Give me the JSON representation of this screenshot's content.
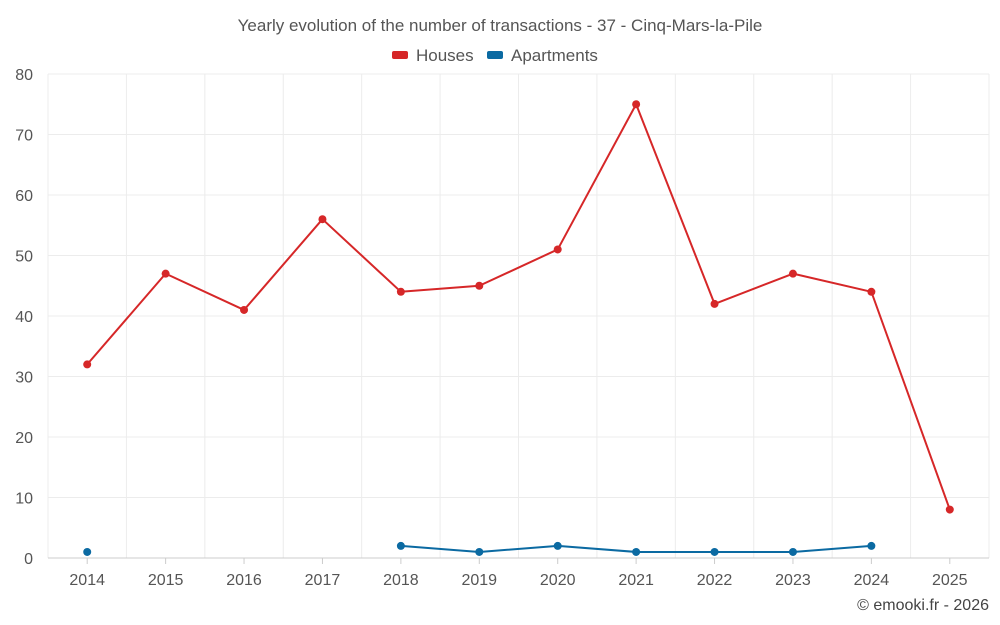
{
  "chart_data": {
    "type": "line",
    "title": "Yearly evolution of the number of transactions - 37 - Cinq-Mars-la-Pile",
    "categories": [
      "2014",
      "2015",
      "2016",
      "2017",
      "2018",
      "2019",
      "2020",
      "2021",
      "2022",
      "2023",
      "2024",
      "2025"
    ],
    "series": [
      {
        "name": "Houses",
        "color": "#d62728",
        "values": [
          32,
          47,
          41,
          56,
          44,
          45,
          51,
          75,
          42,
          47,
          44,
          8
        ]
      },
      {
        "name": "Apartments",
        "color": "#0b6aa2",
        "values": [
          1,
          null,
          null,
          null,
          2,
          1,
          2,
          1,
          1,
          1,
          2,
          null
        ]
      }
    ],
    "ylim": [
      0,
      80
    ],
    "yticks": [
      0,
      10,
      20,
      30,
      40,
      50,
      60,
      70,
      80
    ],
    "xlabel": "",
    "ylabel": "",
    "grid": true,
    "legend": "top-center"
  },
  "credit": "© emooki.fr - 2026"
}
